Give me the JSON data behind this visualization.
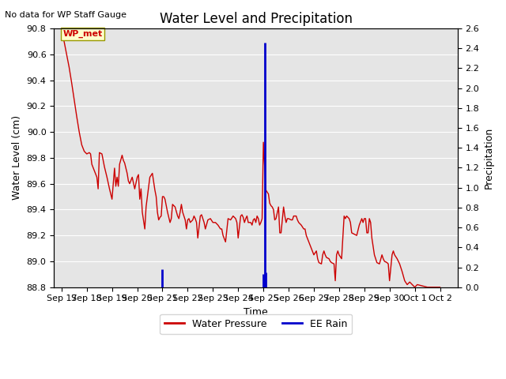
{
  "title": "Water Level and Precipitation",
  "subtitle": "No data for WP Staff Gauge",
  "ylabel_left": "Water Level (cm)",
  "ylabel_right": "Precipitation",
  "xlabel": "Time",
  "annotation": "WP_met",
  "ylim_left": [
    88.8,
    90.8
  ],
  "ylim_right": [
    0.0,
    2.6
  ],
  "yticks_left": [
    88.8,
    89.0,
    89.2,
    89.4,
    89.6,
    89.8,
    90.0,
    90.2,
    90.4,
    90.6,
    90.8
  ],
  "yticks_right": [
    0.0,
    0.2,
    0.4,
    0.6,
    0.8,
    1.0,
    1.2,
    1.4,
    1.6,
    1.8,
    2.0,
    2.2,
    2.4,
    2.6
  ],
  "bg_color": "#e5e5e5",
  "water_pressure_color": "#cc0000",
  "rain_color": "#0000cc",
  "legend_wp": "Water Pressure",
  "legend_rain": "EE Rain",
  "water_pressure": [
    [
      0.0,
      90.77
    ],
    [
      0.1,
      90.7
    ],
    [
      0.2,
      90.6
    ],
    [
      0.3,
      90.5
    ],
    [
      0.4,
      90.38
    ],
    [
      0.5,
      90.25
    ],
    [
      0.6,
      90.12
    ],
    [
      0.7,
      90.0
    ],
    [
      0.8,
      89.9
    ],
    [
      0.9,
      89.85
    ],
    [
      1.0,
      89.83
    ],
    [
      1.1,
      89.84
    ],
    [
      1.15,
      89.83
    ],
    [
      1.2,
      89.75
    ],
    [
      1.3,
      89.7
    ],
    [
      1.4,
      89.65
    ],
    [
      1.45,
      89.56
    ],
    [
      1.5,
      89.84
    ],
    [
      1.6,
      89.83
    ],
    [
      1.7,
      89.73
    ],
    [
      1.8,
      89.65
    ],
    [
      1.9,
      89.56
    ],
    [
      2.0,
      89.48
    ],
    [
      2.1,
      89.72
    ],
    [
      2.15,
      89.58
    ],
    [
      2.2,
      89.65
    ],
    [
      2.25,
      89.58
    ],
    [
      2.3,
      89.75
    ],
    [
      2.4,
      89.82
    ],
    [
      2.45,
      89.78
    ],
    [
      2.5,
      89.76
    ],
    [
      2.6,
      89.68
    ],
    [
      2.65,
      89.62
    ],
    [
      2.7,
      89.6
    ],
    [
      2.8,
      89.65
    ],
    [
      2.9,
      89.56
    ],
    [
      3.0,
      89.65
    ],
    [
      3.05,
      89.67
    ],
    [
      3.1,
      89.48
    ],
    [
      3.15,
      89.56
    ],
    [
      3.2,
      89.38
    ],
    [
      3.3,
      89.25
    ],
    [
      3.35,
      89.42
    ],
    [
      3.5,
      89.65
    ],
    [
      3.6,
      89.68
    ],
    [
      3.7,
      89.55
    ],
    [
      3.75,
      89.5
    ],
    [
      3.8,
      89.38
    ],
    [
      3.85,
      89.32
    ],
    [
      3.9,
      89.34
    ],
    [
      3.95,
      89.35
    ],
    [
      4.0,
      89.5
    ],
    [
      4.05,
      89.5
    ],
    [
      4.1,
      89.48
    ],
    [
      4.2,
      89.38
    ],
    [
      4.3,
      89.3
    ],
    [
      4.35,
      89.33
    ],
    [
      4.4,
      89.44
    ],
    [
      4.5,
      89.42
    ],
    [
      4.6,
      89.35
    ],
    [
      4.65,
      89.33
    ],
    [
      4.7,
      89.38
    ],
    [
      4.75,
      89.44
    ],
    [
      4.8,
      89.38
    ],
    [
      4.85,
      89.35
    ],
    [
      4.9,
      89.32
    ],
    [
      4.95,
      89.25
    ],
    [
      5.0,
      89.32
    ],
    [
      5.05,
      89.33
    ],
    [
      5.1,
      89.3
    ],
    [
      5.2,
      89.32
    ],
    [
      5.25,
      89.35
    ],
    [
      5.3,
      89.33
    ],
    [
      5.35,
      89.3
    ],
    [
      5.4,
      89.18
    ],
    [
      5.5,
      89.35
    ],
    [
      5.55,
      89.36
    ],
    [
      5.6,
      89.33
    ],
    [
      5.65,
      89.3
    ],
    [
      5.7,
      89.25
    ],
    [
      5.8,
      89.32
    ],
    [
      5.9,
      89.33
    ],
    [
      6.0,
      89.3
    ],
    [
      6.1,
      89.3
    ],
    [
      6.2,
      89.28
    ],
    [
      6.3,
      89.25
    ],
    [
      6.35,
      89.25
    ],
    [
      6.4,
      89.2
    ],
    [
      6.5,
      89.15
    ],
    [
      6.6,
      89.33
    ],
    [
      6.7,
      89.32
    ],
    [
      6.8,
      89.35
    ],
    [
      6.9,
      89.33
    ],
    [
      6.95,
      89.3
    ],
    [
      7.0,
      89.18
    ],
    [
      7.1,
      89.35
    ],
    [
      7.15,
      89.36
    ],
    [
      7.2,
      89.34
    ],
    [
      7.25,
      89.3
    ],
    [
      7.3,
      89.33
    ],
    [
      7.35,
      89.35
    ],
    [
      7.4,
      89.3
    ],
    [
      7.5,
      89.3
    ],
    [
      7.55,
      89.28
    ],
    [
      7.6,
      89.32
    ],
    [
      7.65,
      89.33
    ],
    [
      7.7,
      89.3
    ],
    [
      7.75,
      89.35
    ],
    [
      7.8,
      89.33
    ],
    [
      7.85,
      89.28
    ],
    [
      7.9,
      89.3
    ],
    [
      7.95,
      89.33
    ],
    [
      8.0,
      89.92
    ],
    [
      8.1,
      89.55
    ],
    [
      8.2,
      89.52
    ],
    [
      8.25,
      89.45
    ],
    [
      8.3,
      89.43
    ],
    [
      8.35,
      89.42
    ],
    [
      8.4,
      89.4
    ],
    [
      8.45,
      89.32
    ],
    [
      8.5,
      89.33
    ],
    [
      8.6,
      89.42
    ],
    [
      8.65,
      89.22
    ],
    [
      8.7,
      89.22
    ],
    [
      8.8,
      89.42
    ],
    [
      8.85,
      89.35
    ],
    [
      8.9,
      89.3
    ],
    [
      8.95,
      89.33
    ],
    [
      9.0,
      89.33
    ],
    [
      9.1,
      89.32
    ],
    [
      9.15,
      89.32
    ],
    [
      9.2,
      89.35
    ],
    [
      9.3,
      89.35
    ],
    [
      9.35,
      89.32
    ],
    [
      9.4,
      89.3
    ],
    [
      9.5,
      89.28
    ],
    [
      9.6,
      89.25
    ],
    [
      9.65,
      89.25
    ],
    [
      9.7,
      89.2
    ],
    [
      9.8,
      89.15
    ],
    [
      10.0,
      89.05
    ],
    [
      10.1,
      89.08
    ],
    [
      10.15,
      89.02
    ],
    [
      10.2,
      88.99
    ],
    [
      10.3,
      88.98
    ],
    [
      10.35,
      89.05
    ],
    [
      10.4,
      89.08
    ],
    [
      10.45,
      89.05
    ],
    [
      10.5,
      89.03
    ],
    [
      10.6,
      89.02
    ],
    [
      10.65,
      89.0
    ],
    [
      10.7,
      88.99
    ],
    [
      10.8,
      88.98
    ],
    [
      10.85,
      88.85
    ],
    [
      10.9,
      89.05
    ],
    [
      10.95,
      89.08
    ],
    [
      11.0,
      89.05
    ],
    [
      11.1,
      89.02
    ],
    [
      11.2,
      89.35
    ],
    [
      11.25,
      89.33
    ],
    [
      11.3,
      89.35
    ],
    [
      11.4,
      89.33
    ],
    [
      11.45,
      89.3
    ],
    [
      11.5,
      89.22
    ],
    [
      11.6,
      89.21
    ],
    [
      11.7,
      89.2
    ],
    [
      11.8,
      89.28
    ],
    [
      11.9,
      89.33
    ],
    [
      11.95,
      89.3
    ],
    [
      12.0,
      89.33
    ],
    [
      12.05,
      89.33
    ],
    [
      12.1,
      89.22
    ],
    [
      12.15,
      89.22
    ],
    [
      12.2,
      89.33
    ],
    [
      12.25,
      89.3
    ],
    [
      12.3,
      89.18
    ],
    [
      12.4,
      89.05
    ],
    [
      12.45,
      89.02
    ],
    [
      12.5,
      88.99
    ],
    [
      12.6,
      88.98
    ],
    [
      12.7,
      89.05
    ],
    [
      12.75,
      89.02
    ],
    [
      12.8,
      89.0
    ],
    [
      12.9,
      88.99
    ],
    [
      12.95,
      88.98
    ],
    [
      13.0,
      88.85
    ],
    [
      13.1,
      89.05
    ],
    [
      13.15,
      89.08
    ],
    [
      13.2,
      89.05
    ],
    [
      13.3,
      89.02
    ],
    [
      13.35,
      89.0
    ],
    [
      13.4,
      88.98
    ],
    [
      13.5,
      88.92
    ],
    [
      13.6,
      88.85
    ],
    [
      13.7,
      88.82
    ],
    [
      13.8,
      88.84
    ],
    [
      13.9,
      88.82
    ],
    [
      14.0,
      88.8
    ],
    [
      14.1,
      88.82
    ],
    [
      14.5,
      88.8
    ],
    [
      15.0,
      88.8
    ]
  ],
  "rain_bars": [
    [
      4.0,
      0.18
    ],
    [
      8.0,
      0.13
    ],
    [
      8.05,
      2.46
    ],
    [
      8.08,
      0.15
    ]
  ],
  "xtick_labels": [
    "Sep 17",
    "Sep 18",
    "Sep 19",
    "Sep 20",
    "Sep 21",
    "Sep 22",
    "Sep 23",
    "Sep 24",
    "Sep 25",
    "Sep 26",
    "Sep 27",
    "Sep 28",
    "Sep 29",
    "Sep 30",
    "Oct 1",
    "Oct 2"
  ],
  "xlim": [
    -0.3,
    15.7
  ],
  "title_fontsize": 12,
  "subtitle_fontsize": 8,
  "label_fontsize": 9,
  "tick_fontsize": 8
}
